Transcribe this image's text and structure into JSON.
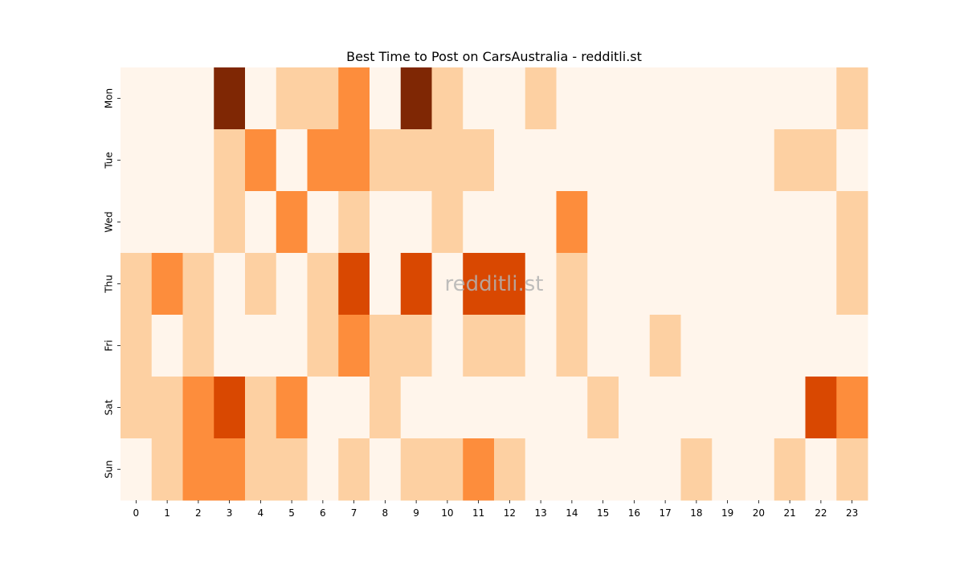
{
  "chart_data": {
    "type": "heatmap",
    "title": "Best Time to Post on CarsAustralia - redditli.st",
    "xlabel": "",
    "ylabel": "",
    "x_categories": [
      "0",
      "1",
      "2",
      "3",
      "4",
      "5",
      "6",
      "7",
      "8",
      "9",
      "10",
      "11",
      "12",
      "13",
      "14",
      "15",
      "16",
      "17",
      "18",
      "19",
      "20",
      "21",
      "22",
      "23"
    ],
    "y_categories": [
      "Mon",
      "Tue",
      "Wed",
      "Thu",
      "Fri",
      "Sat",
      "Sun"
    ],
    "values": [
      [
        0,
        0,
        0,
        4,
        0,
        1,
        1,
        2,
        0,
        4,
        1,
        0,
        0,
        1,
        0,
        0,
        0,
        0,
        0,
        0,
        0,
        0,
        0,
        1
      ],
      [
        0,
        0,
        0,
        1,
        2,
        0,
        2,
        2,
        1,
        1,
        1,
        1,
        0,
        0,
        0,
        0,
        0,
        0,
        0,
        0,
        0,
        1,
        1,
        0
      ],
      [
        0,
        0,
        0,
        1,
        0,
        2,
        0,
        1,
        0,
        0,
        1,
        0,
        0,
        0,
        2,
        0,
        0,
        0,
        0,
        0,
        0,
        0,
        0,
        1
      ],
      [
        1,
        2,
        1,
        0,
        1,
        0,
        1,
        3,
        0,
        3,
        0,
        3,
        3,
        0,
        1,
        0,
        0,
        0,
        0,
        0,
        0,
        0,
        0,
        1
      ],
      [
        1,
        0,
        1,
        0,
        0,
        0,
        1,
        2,
        1,
        1,
        0,
        1,
        1,
        0,
        1,
        0,
        0,
        1,
        0,
        0,
        0,
        0,
        0,
        0
      ],
      [
        1,
        1,
        2,
        3,
        1,
        2,
        0,
        0,
        1,
        0,
        0,
        0,
        0,
        0,
        0,
        1,
        0,
        0,
        0,
        0,
        0,
        0,
        3,
        2
      ],
      [
        0,
        1,
        2,
        2,
        1,
        1,
        0,
        1,
        0,
        1,
        1,
        2,
        1,
        0,
        0,
        0,
        0,
        0,
        1,
        0,
        0,
        1,
        0,
        1
      ]
    ],
    "colormap": [
      "#fff5eb",
      "#fdd0a2",
      "#fd8d3c",
      "#d94801",
      "#7f2704"
    ],
    "colorbar": false,
    "grid": false,
    "watermark": "redditli.st"
  }
}
